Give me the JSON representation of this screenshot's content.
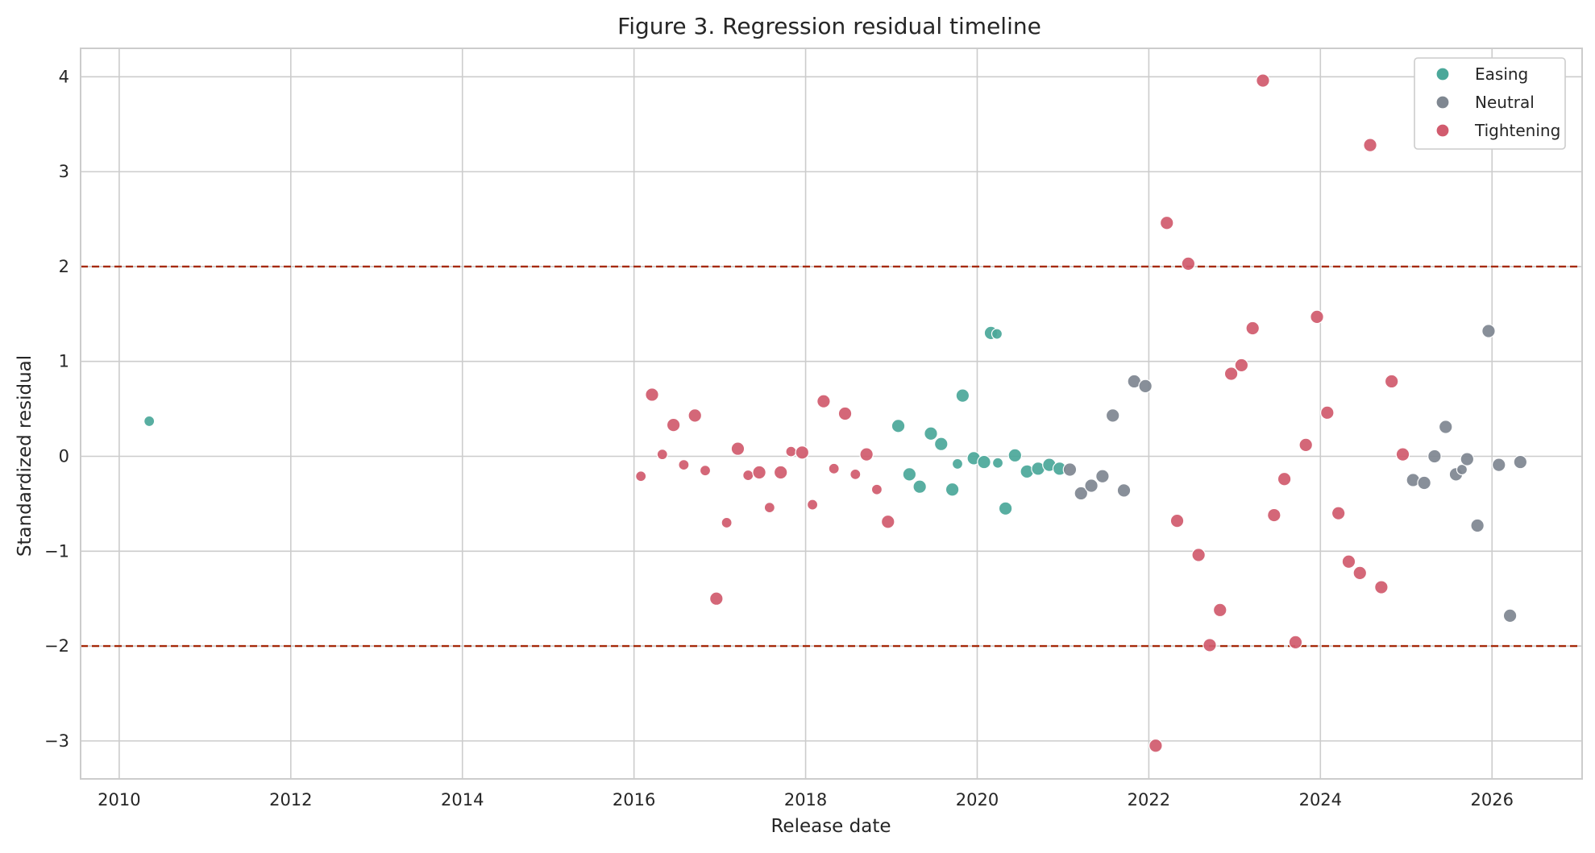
{
  "chart_data": {
    "type": "scatter",
    "title": "Figure 3. Regression residual timeline",
    "xlabel": "Release date",
    "ylabel": "Standardized residual",
    "xlim": [
      2009.55,
      2027.05
    ],
    "ylim": [
      -3.4,
      4.3
    ],
    "x_ticks": [
      2010,
      2012,
      2014,
      2016,
      2018,
      2020,
      2022,
      2024,
      2026
    ],
    "y_ticks": [
      -3,
      -2,
      -1,
      0,
      1,
      2,
      3,
      4
    ],
    "y_tick_labels": [
      "−3",
      "−2",
      "−1",
      "0",
      "1",
      "2",
      "3",
      "4"
    ],
    "grid": true,
    "legend_position": "top-right",
    "reference_lines": [
      {
        "y": 2,
        "style": "dashed",
        "color": "#a52a0a"
      },
      {
        "y": -2,
        "style": "dashed",
        "color": "#a52a0a"
      }
    ],
    "series": [
      {
        "name": "Easing",
        "color": "#4ba89a",
        "points": [
          {
            "x": 2010.35,
            "y": 0.37,
            "size": "small"
          },
          {
            "x": 2019.08,
            "y": 0.32,
            "size": "large"
          },
          {
            "x": 2019.21,
            "y": -0.19,
            "size": "large"
          },
          {
            "x": 2019.33,
            "y": -0.32,
            "size": "large"
          },
          {
            "x": 2019.46,
            "y": 0.24,
            "size": "large"
          },
          {
            "x": 2019.58,
            "y": 0.13,
            "size": "large"
          },
          {
            "x": 2019.71,
            "y": -0.35,
            "size": "large"
          },
          {
            "x": 2019.77,
            "y": -0.08,
            "size": "small"
          },
          {
            "x": 2019.83,
            "y": 0.64,
            "size": "large"
          },
          {
            "x": 2019.96,
            "y": -0.02,
            "size": "large"
          },
          {
            "x": 2020.08,
            "y": -0.06,
            "size": "large"
          },
          {
            "x": 2020.16,
            "y": 1.3,
            "size": "large"
          },
          {
            "x": 2020.23,
            "y": 1.29,
            "size": "small"
          },
          {
            "x": 2020.24,
            "y": -0.07,
            "size": "small"
          },
          {
            "x": 2020.33,
            "y": -0.55,
            "size": "large"
          },
          {
            "x": 2020.44,
            "y": 0.01,
            "size": "large"
          },
          {
            "x": 2020.58,
            "y": -0.16,
            "size": "large"
          },
          {
            "x": 2020.71,
            "y": -0.13,
            "size": "large"
          },
          {
            "x": 2020.84,
            "y": -0.09,
            "size": "large"
          },
          {
            "x": 2020.96,
            "y": -0.13,
            "size": "large"
          }
        ]
      },
      {
        "name": "Neutral",
        "color": "#7f8791",
        "points": [
          {
            "x": 2021.08,
            "y": -0.14,
            "size": "large"
          },
          {
            "x": 2021.21,
            "y": -0.39,
            "size": "large"
          },
          {
            "x": 2021.33,
            "y": -0.31,
            "size": "large"
          },
          {
            "x": 2021.46,
            "y": -0.21,
            "size": "large"
          },
          {
            "x": 2021.58,
            "y": 0.43,
            "size": "large"
          },
          {
            "x": 2021.71,
            "y": -0.36,
            "size": "large"
          },
          {
            "x": 2021.83,
            "y": 0.79,
            "size": "large"
          },
          {
            "x": 2021.96,
            "y": 0.74,
            "size": "large"
          },
          {
            "x": 2025.08,
            "y": -0.25,
            "size": "large"
          },
          {
            "x": 2025.21,
            "y": -0.28,
            "size": "large"
          },
          {
            "x": 2025.33,
            "y": 0.0,
            "size": "large"
          },
          {
            "x": 2025.46,
            "y": 0.31,
            "size": "large"
          },
          {
            "x": 2025.58,
            "y": -0.19,
            "size": "large"
          },
          {
            "x": 2025.65,
            "y": -0.14,
            "size": "small"
          },
          {
            "x": 2025.71,
            "y": -0.03,
            "size": "large"
          },
          {
            "x": 2025.83,
            "y": -0.73,
            "size": "large"
          },
          {
            "x": 2025.96,
            "y": 1.32,
            "size": "large"
          },
          {
            "x": 2026.08,
            "y": -0.09,
            "size": "large"
          },
          {
            "x": 2026.21,
            "y": -1.68,
            "size": "large"
          },
          {
            "x": 2026.33,
            "y": -0.06,
            "size": "large"
          }
        ]
      },
      {
        "name": "Tightening",
        "color": "#d15b6e",
        "points": [
          {
            "x": 2016.08,
            "y": -0.21,
            "size": "small"
          },
          {
            "x": 2016.21,
            "y": 0.65,
            "size": "large"
          },
          {
            "x": 2016.33,
            "y": 0.02,
            "size": "small"
          },
          {
            "x": 2016.46,
            "y": 0.33,
            "size": "large"
          },
          {
            "x": 2016.58,
            "y": -0.09,
            "size": "small"
          },
          {
            "x": 2016.71,
            "y": 0.43,
            "size": "large"
          },
          {
            "x": 2016.83,
            "y": -0.15,
            "size": "small"
          },
          {
            "x": 2016.96,
            "y": -1.5,
            "size": "large"
          },
          {
            "x": 2017.08,
            "y": -0.7,
            "size": "small"
          },
          {
            "x": 2017.21,
            "y": 0.08,
            "size": "large"
          },
          {
            "x": 2017.33,
            "y": -0.2,
            "size": "small"
          },
          {
            "x": 2017.46,
            "y": -0.17,
            "size": "large"
          },
          {
            "x": 2017.58,
            "y": -0.54,
            "size": "small"
          },
          {
            "x": 2017.71,
            "y": -0.17,
            "size": "large"
          },
          {
            "x": 2017.83,
            "y": 0.05,
            "size": "small"
          },
          {
            "x": 2017.96,
            "y": 0.04,
            "size": "large"
          },
          {
            "x": 2018.08,
            "y": -0.51,
            "size": "small"
          },
          {
            "x": 2018.21,
            "y": 0.58,
            "size": "large"
          },
          {
            "x": 2018.33,
            "y": -0.13,
            "size": "small"
          },
          {
            "x": 2018.46,
            "y": 0.45,
            "size": "large"
          },
          {
            "x": 2018.58,
            "y": -0.19,
            "size": "small"
          },
          {
            "x": 2018.71,
            "y": 0.02,
            "size": "large"
          },
          {
            "x": 2018.83,
            "y": -0.35,
            "size": "small"
          },
          {
            "x": 2018.96,
            "y": -0.69,
            "size": "large"
          },
          {
            "x": 2022.08,
            "y": -3.05,
            "size": "large"
          },
          {
            "x": 2022.21,
            "y": 2.46,
            "size": "large"
          },
          {
            "x": 2022.33,
            "y": -0.68,
            "size": "large"
          },
          {
            "x": 2022.46,
            "y": 2.03,
            "size": "large"
          },
          {
            "x": 2022.58,
            "y": -1.04,
            "size": "large"
          },
          {
            "x": 2022.71,
            "y": -1.99,
            "size": "large"
          },
          {
            "x": 2022.83,
            "y": -1.62,
            "size": "large"
          },
          {
            "x": 2022.96,
            "y": 0.87,
            "size": "large"
          },
          {
            "x": 2023.08,
            "y": 0.96,
            "size": "large"
          },
          {
            "x": 2023.21,
            "y": 1.35,
            "size": "large"
          },
          {
            "x": 2023.33,
            "y": 3.96,
            "size": "large"
          },
          {
            "x": 2023.46,
            "y": -0.62,
            "size": "large"
          },
          {
            "x": 2023.58,
            "y": -0.24,
            "size": "large"
          },
          {
            "x": 2023.71,
            "y": -1.96,
            "size": "large"
          },
          {
            "x": 2023.83,
            "y": 0.12,
            "size": "large"
          },
          {
            "x": 2023.96,
            "y": 1.47,
            "size": "large"
          },
          {
            "x": 2024.08,
            "y": 0.46,
            "size": "large"
          },
          {
            "x": 2024.21,
            "y": -0.6,
            "size": "large"
          },
          {
            "x": 2024.33,
            "y": -1.11,
            "size": "large"
          },
          {
            "x": 2024.46,
            "y": -1.23,
            "size": "large"
          },
          {
            "x": 2024.58,
            "y": 3.28,
            "size": "large"
          },
          {
            "x": 2024.71,
            "y": -1.38,
            "size": "large"
          },
          {
            "x": 2024.83,
            "y": 0.79,
            "size": "large"
          },
          {
            "x": 2024.96,
            "y": 0.02,
            "size": "large"
          }
        ]
      }
    ]
  }
}
